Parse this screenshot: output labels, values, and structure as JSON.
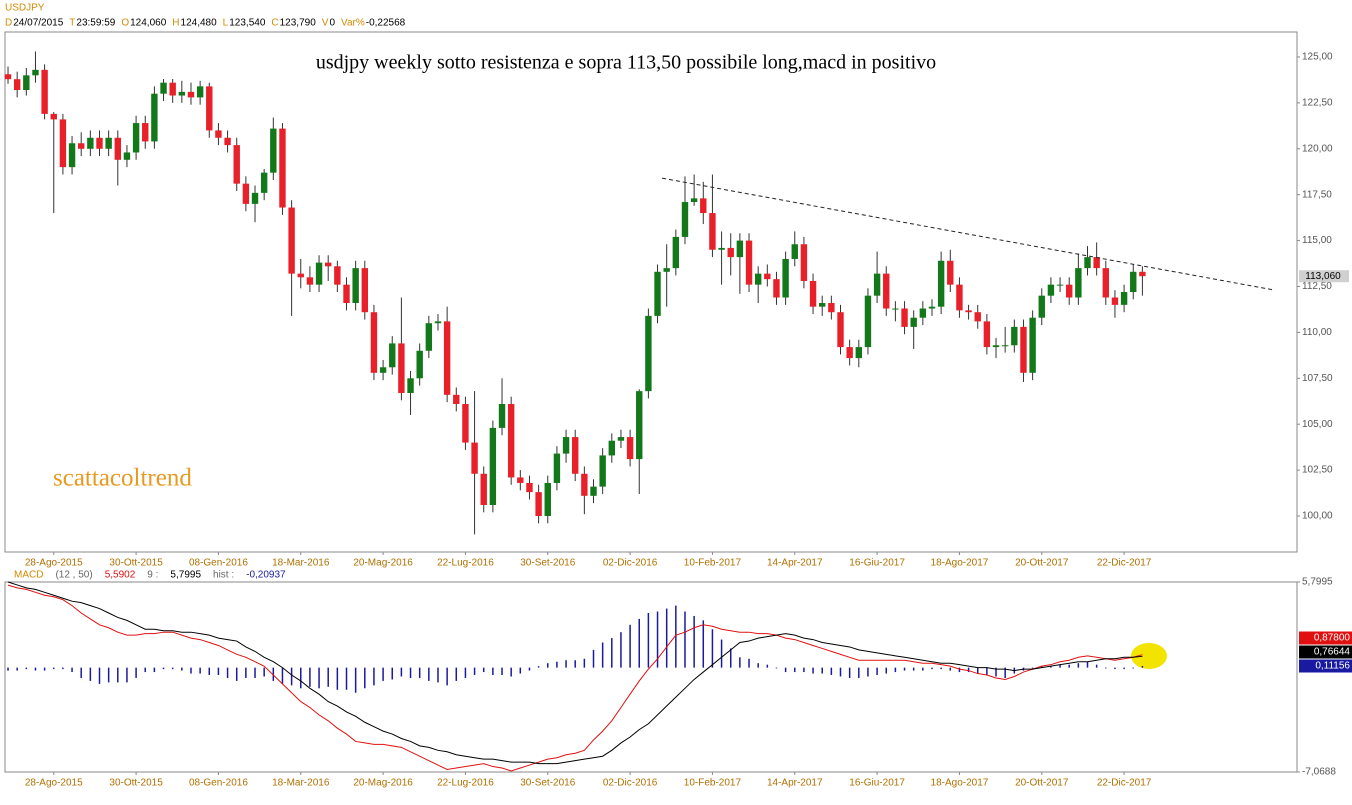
{
  "header": {
    "symbol": "USDJPY",
    "fields": [
      {
        "key": "D",
        "text": "24/07/2015"
      },
      {
        "key": "T",
        "text": "23:59:59"
      },
      {
        "key": "O",
        "text": "124,060"
      },
      {
        "key": "H",
        "text": "124,480"
      },
      {
        "key": "L",
        "text": "123,540"
      },
      {
        "key": "C",
        "text": "123,790"
      },
      {
        "key": "V",
        "text": "0"
      },
      {
        "key": "Var%",
        "text": "-0,22568"
      }
    ]
  },
  "chart_data": [
    {
      "type": "candlestick",
      "title": "usdjpy weekly sotto resistenza e sopra 113,50 possibile long,macd in positivo",
      "annotation": "scattacoltrend",
      "up_color": "#12781a",
      "down_color": "#e8202a",
      "xlim": [
        -0.33,
        140.9
      ],
      "ylim": [
        98.04,
        126.36
      ],
      "yticks": [
        {
          "value": 100,
          "label": "100,00"
        },
        {
          "value": 102.5,
          "label": "102,50"
        },
        {
          "value": 105,
          "label": "105,00"
        },
        {
          "value": 107.5,
          "label": "107,50"
        },
        {
          "value": 110,
          "label": "110,00"
        },
        {
          "value": 112.5,
          "label": "112,50"
        },
        {
          "value": 115,
          "label": "115,00"
        },
        {
          "value": 117.5,
          "label": "117,50"
        },
        {
          "value": 120,
          "label": "120,00"
        },
        {
          "value": 122.5,
          "label": "122,50"
        },
        {
          "value": 125,
          "label": "125,00"
        }
      ],
      "xticks": [
        {
          "value": 5,
          "label": "28-Ago-2015"
        },
        {
          "value": 14,
          "label": "30-Ott-2015"
        },
        {
          "value": 23,
          "label": "08-Gen-2016"
        },
        {
          "value": 32,
          "label": "18-Mar-2016"
        },
        {
          "value": 41,
          "label": "20-Mag-2016"
        },
        {
          "value": 50,
          "label": "22-Lug-2016"
        },
        {
          "value": 59,
          "label": "30-Set-2016"
        },
        {
          "value": 68,
          "label": "02-Dic-2016"
        },
        {
          "value": 77,
          "label": "10-Feb-2017"
        },
        {
          "value": 86,
          "label": "14-Apr-2017"
        },
        {
          "value": 95,
          "label": "16-Giu-2017"
        },
        {
          "value": 104,
          "label": "18-Ago-2017"
        },
        {
          "value": 113,
          "label": "20-Ott-2017"
        },
        {
          "value": 122,
          "label": "22-Dic-2017"
        }
      ],
      "open": [
        124.06,
        123.79,
        123.2,
        124.0,
        124.3,
        121.9,
        121.6,
        119.0,
        120.3,
        120.0,
        120.6,
        120.0,
        120.6,
        119.4,
        119.8,
        121.4,
        120.4,
        123.0,
        123.6,
        122.9,
        123.1,
        122.8,
        123.4,
        121.0,
        120.6,
        120.2,
        118.1,
        117.0,
        117.6,
        118.7,
        121.1,
        116.8,
        113.2,
        113.0,
        112.6,
        113.8,
        113.6,
        112.6,
        111.6,
        113.5,
        111.1,
        107.8,
        108.1,
        109.4,
        106.7,
        107.5,
        109.0,
        110.5,
        110.6,
        106.6,
        106.1,
        104.0,
        102.3,
        100.6,
        104.8,
        106.1,
        102.1,
        101.8,
        101.3,
        100.0,
        101.8,
        103.4,
        104.3,
        102.3,
        101.1,
        101.6,
        103.3,
        104.1,
        104.3,
        103.1,
        106.8,
        110.9,
        113.3,
        113.5,
        115.2,
        117.1,
        117.3,
        116.5,
        114.5,
        114.6,
        114.1,
        115.0,
        112.6,
        113.2,
        112.9,
        111.9,
        114.0,
        114.8,
        112.8,
        111.4,
        111.6,
        111.1,
        109.2,
        108.6,
        109.2,
        112.0,
        113.2,
        111.3,
        111.3,
        110.3,
        110.8,
        111.3,
        111.4,
        113.9,
        112.6,
        111.2,
        111.1,
        110.6,
        109.2,
        109.3,
        109.3,
        110.3,
        107.8,
        110.8,
        112.0,
        112.6,
        112.6,
        111.9,
        113.5,
        114.1,
        113.5,
        111.9,
        111.5,
        112.2,
        113.3
      ],
      "high": [
        124.48,
        124.2,
        124.4,
        125.3,
        124.6,
        122.0,
        121.9,
        120.7,
        120.9,
        121.0,
        121.0,
        121.0,
        121.0,
        120.2,
        121.8,
        121.8,
        123.4,
        123.8,
        123.8,
        123.7,
        123.6,
        123.7,
        123.6,
        121.4,
        121.0,
        120.6,
        118.5,
        118.0,
        118.9,
        121.7,
        121.4,
        117.2,
        114.0,
        113.6,
        114.2,
        114.2,
        113.9,
        113.0,
        113.9,
        113.9,
        111.5,
        108.5,
        109.8,
        111.9,
        107.9,
        109.4,
        110.9,
        111.0,
        111.4,
        107.0,
        106.5,
        106.8,
        102.7,
        105.2,
        107.5,
        106.5,
        102.5,
        102.2,
        101.7,
        102.2,
        103.8,
        104.7,
        104.7,
        102.7,
        102.0,
        103.7,
        104.5,
        104.7,
        104.7,
        106.9,
        111.3,
        113.7,
        114.8,
        115.6,
        118.5,
        118.6,
        118.2,
        118.6,
        115.5,
        115.4,
        115.4,
        115.4,
        113.6,
        113.7,
        113.3,
        114.4,
        115.5,
        115.2,
        113.2,
        112.0,
        112.0,
        111.5,
        109.6,
        109.6,
        112.4,
        114.4,
        113.6,
        111.7,
        111.7,
        111.2,
        111.7,
        111.8,
        114.4,
        114.5,
        113.0,
        111.5,
        111.5,
        111.0,
        109.7,
        110.3,
        110.7,
        110.7,
        111.2,
        112.4,
        113.0,
        113.0,
        113.0,
        114.3,
        114.7,
        114.9,
        113.9,
        112.3,
        112.6,
        113.7,
        113.6
      ],
      "low": [
        123.54,
        122.8,
        122.9,
        123.6,
        121.6,
        116.5,
        118.6,
        118.6,
        119.6,
        119.6,
        119.6,
        119.6,
        118.0,
        119.0,
        119.4,
        120.0,
        120.0,
        122.6,
        122.5,
        122.5,
        122.4,
        122.4,
        120.6,
        120.2,
        119.8,
        117.7,
        116.6,
        116.0,
        117.2,
        118.3,
        116.4,
        110.9,
        112.4,
        112.2,
        112.2,
        112.8,
        112.2,
        111.2,
        111.2,
        110.7,
        107.4,
        107.4,
        107.7,
        106.3,
        105.5,
        107.1,
        108.6,
        110.1,
        106.2,
        105.7,
        103.6,
        99.0,
        100.2,
        100.2,
        104.4,
        101.7,
        101.4,
        100.9,
        99.6,
        99.6,
        101.4,
        102.9,
        101.9,
        100.1,
        100.7,
        101.2,
        102.9,
        103.7,
        102.7,
        101.2,
        106.4,
        110.5,
        111.4,
        113.1,
        114.8,
        116.9,
        115.9,
        114.1,
        112.6,
        113.1,
        112.1,
        112.2,
        111.6,
        112.5,
        111.5,
        111.5,
        113.6,
        112.4,
        111.0,
        110.9,
        110.7,
        108.8,
        108.2,
        108.1,
        108.8,
        111.6,
        110.9,
        110.6,
        109.9,
        109.1,
        110.4,
        110.9,
        111.0,
        112.2,
        110.8,
        110.7,
        110.2,
        108.8,
        108.6,
        108.9,
        108.9,
        107.3,
        107.4,
        110.4,
        111.6,
        112.2,
        111.5,
        111.5,
        113.1,
        113.1,
        111.5,
        110.8,
        111.1,
        111.8,
        112.0
      ],
      "close": [
        123.79,
        123.2,
        124.0,
        124.3,
        121.9,
        121.6,
        119.0,
        120.3,
        120.0,
        120.6,
        120.0,
        120.6,
        119.4,
        119.8,
        121.4,
        120.4,
        123.0,
        123.6,
        122.9,
        123.1,
        122.8,
        123.4,
        121.0,
        120.6,
        120.2,
        118.1,
        117.0,
        117.6,
        118.7,
        121.1,
        116.8,
        113.2,
        113.0,
        112.6,
        113.8,
        113.6,
        112.6,
        111.6,
        113.5,
        111.1,
        107.8,
        108.1,
        109.4,
        106.7,
        107.5,
        109.0,
        110.5,
        110.6,
        106.6,
        106.1,
        104.0,
        102.3,
        100.6,
        104.8,
        106.1,
        102.1,
        101.8,
        101.3,
        100.0,
        101.8,
        103.4,
        104.3,
        102.3,
        101.1,
        101.6,
        103.3,
        104.1,
        104.3,
        103.1,
        106.8,
        110.9,
        113.3,
        113.5,
        115.2,
        117.1,
        117.3,
        116.5,
        114.5,
        114.6,
        114.1,
        115.0,
        112.6,
        113.2,
        112.9,
        111.9,
        114.0,
        114.8,
        112.8,
        111.4,
        111.6,
        111.1,
        109.2,
        108.6,
        109.2,
        112.0,
        113.2,
        111.3,
        111.3,
        110.3,
        110.8,
        111.3,
        111.4,
        113.9,
        112.6,
        111.2,
        111.1,
        110.6,
        109.2,
        109.3,
        109.3,
        110.3,
        107.8,
        110.8,
        112.0,
        112.6,
        112.6,
        111.9,
        113.5,
        114.1,
        113.5,
        111.9,
        111.5,
        112.2,
        113.3,
        113.06
      ],
      "last_label": "113,060",
      "trendline": {
        "x": [
          71.5,
          138.5
        ],
        "y": [
          118.4,
          112.3
        ]
      }
    },
    {
      "type": "line",
      "legend": [
        {
          "text": "MACD",
          "color": "#d08a00"
        },
        {
          "text": "(12 , 50)",
          "color": "#666666"
        },
        {
          "text": "5,5902",
          "color": "#e01010"
        },
        {
          "text": "9 :",
          "color": "#666666"
        },
        {
          "text": "5,7995",
          "color": "#000000"
        },
        {
          "text": "hist :",
          "color": "#666666"
        },
        {
          "text": "-0,20937",
          "color": "#1a1aa0"
        }
      ],
      "xlim": [
        -0.33,
        140.9
      ],
      "ylim": [
        -7.0688,
        5.7995
      ],
      "yticks": [
        {
          "value": -7.0688,
          "label": "-7,0688"
        },
        {
          "value": 5.7995,
          "label": "5,7995"
        }
      ],
      "series": [
        {
          "color": "#1a1aa0",
          "style": "bar",
          "last_label": "0,11156",
          "values": [
            -0.20937,
            -0.2,
            -0.1,
            -0.2,
            -0.2,
            -0.1,
            -0.1,
            -0.3,
            -0.7,
            -0.9,
            -1.1,
            -1.0,
            -1.0,
            -1.0,
            -0.7,
            -0.3,
            -0.3,
            -0.1,
            -0.1,
            -0.2,
            -0.4,
            -0.4,
            -0.5,
            -0.5,
            -0.7,
            -0.9,
            -0.7,
            -0.7,
            -0.6,
            -0.9,
            -1.1,
            -1.2,
            -1.4,
            -1.3,
            -1.4,
            -1.3,
            -1.5,
            -1.5,
            -1.7,
            -1.4,
            -1.2,
            -0.9,
            -0.8,
            -0.6,
            -0.7,
            -0.7,
            -0.9,
            -1.0,
            -1.2,
            -0.9,
            -0.7,
            -0.5,
            -0.3,
            -0.5,
            -0.5,
            -0.6,
            -0.4,
            -0.2,
            0.1,
            0.3,
            0.4,
            0.5,
            0.5,
            0.6,
            1.2,
            1.7,
            2.0,
            2.4,
            2.9,
            3.3,
            3.7,
            3.8,
            4.0,
            4.2,
            3.8,
            3.5,
            3.2,
            2.6,
            1.9,
            1.3,
            0.7,
            0.6,
            0.3,
            0.2,
            0.0,
            -0.3,
            -0.3,
            -0.3,
            -0.4,
            -0.4,
            -0.5,
            -0.6,
            -0.7,
            -0.7,
            -0.6,
            -0.5,
            -0.4,
            -0.3,
            -0.2,
            -0.2,
            -0.2,
            -0.1,
            -0.1,
            -0.2,
            -0.3,
            -0.3,
            -0.4,
            -0.5,
            -0.6,
            -0.7,
            -0.4,
            -0.2,
            0.0,
            0.1,
            0.1,
            0.2,
            0.2,
            0.3,
            0.4,
            0.2,
            0.0,
            -0.1,
            -0.1,
            0.0,
            0.11156
          ]
        },
        {
          "color": "#e01010",
          "style": "line",
          "last_label": "0,87800",
          "values": [
            5.5902,
            5.4,
            5.3,
            5.1,
            4.9,
            4.8,
            4.6,
            4.2,
            3.7,
            3.3,
            2.9,
            2.7,
            2.4,
            2.2,
            2.2,
            2.3,
            2.3,
            2.4,
            2.4,
            2.2,
            2.0,
            1.9,
            1.7,
            1.5,
            1.2,
            0.9,
            0.7,
            0.4,
            0.1,
            -0.5,
            -1.1,
            -1.7,
            -2.3,
            -2.7,
            -3.2,
            -3.6,
            -4.1,
            -4.5,
            -5.0,
            -5.1,
            -5.2,
            -5.2,
            -5.3,
            -5.4,
            -5.7,
            -6.0,
            -6.3,
            -6.6,
            -6.9,
            -6.8,
            -6.7,
            -6.6,
            -6.5,
            -6.7,
            -6.8,
            -7.0,
            -6.8,
            -6.6,
            -6.4,
            -6.2,
            -6.1,
            -5.9,
            -5.8,
            -5.6,
            -4.9,
            -4.3,
            -3.6,
            -2.7,
            -1.8,
            -0.9,
            -0.1,
            0.6,
            1.4,
            2.2,
            2.4,
            2.7,
            2.9,
            2.8,
            2.6,
            2.5,
            2.4,
            2.4,
            2.3,
            2.3,
            2.2,
            2.0,
            1.9,
            1.7,
            1.5,
            1.3,
            1.1,
            0.9,
            0.7,
            0.5,
            0.5,
            0.5,
            0.5,
            0.5,
            0.5,
            0.4,
            0.3,
            0.3,
            0.2,
            0.1,
            -0.1,
            -0.2,
            -0.4,
            -0.5,
            -0.7,
            -0.8,
            -0.6,
            -0.3,
            -0.1,
            0.1,
            0.2,
            0.4,
            0.5,
            0.7,
            0.8,
            0.7,
            0.6,
            0.5,
            0.6,
            0.7,
            0.878
          ]
        },
        {
          "color": "#000000",
          "style": "line",
          "last_label": "0,76644",
          "values": [
            5.7995,
            5.6,
            5.4,
            5.3,
            5.1,
            4.9,
            4.7,
            4.5,
            4.4,
            4.2,
            4.0,
            3.7,
            3.4,
            3.2,
            2.9,
            2.6,
            2.6,
            2.5,
            2.5,
            2.4,
            2.4,
            2.3,
            2.2,
            2.0,
            1.9,
            1.8,
            1.4,
            1.1,
            0.7,
            0.4,
            0.0,
            -0.5,
            -0.9,
            -1.4,
            -1.8,
            -2.3,
            -2.6,
            -3.0,
            -3.3,
            -3.7,
            -4.0,
            -4.3,
            -4.5,
            -4.8,
            -5.0,
            -5.3,
            -5.4,
            -5.6,
            -5.7,
            -5.9,
            -6.0,
            -6.1,
            -6.2,
            -6.2,
            -6.3,
            -6.4,
            -6.4,
            -6.4,
            -6.5,
            -6.5,
            -6.5,
            -6.4,
            -6.3,
            -6.2,
            -6.1,
            -6.0,
            -5.6,
            -5.1,
            -4.7,
            -4.2,
            -3.8,
            -3.2,
            -2.6,
            -2.0,
            -1.4,
            -0.8,
            -0.3,
            0.2,
            0.7,
            1.2,
            1.7,
            1.8,
            2.0,
            2.1,
            2.2,
            2.3,
            2.2,
            2.0,
            1.9,
            1.7,
            1.6,
            1.5,
            1.4,
            1.2,
            1.1,
            1.0,
            0.9,
            0.8,
            0.7,
            0.6,
            0.5,
            0.4,
            0.3,
            0.3,
            0.2,
            0.1,
            0.0,
            0.0,
            -0.1,
            -0.1,
            -0.2,
            -0.1,
            -0.1,
            0.0,
            0.1,
            0.2,
            0.3,
            0.4,
            0.4,
            0.5,
            0.6,
            0.6,
            0.7,
            0.7,
            0.76644
          ]
        }
      ]
    }
  ]
}
